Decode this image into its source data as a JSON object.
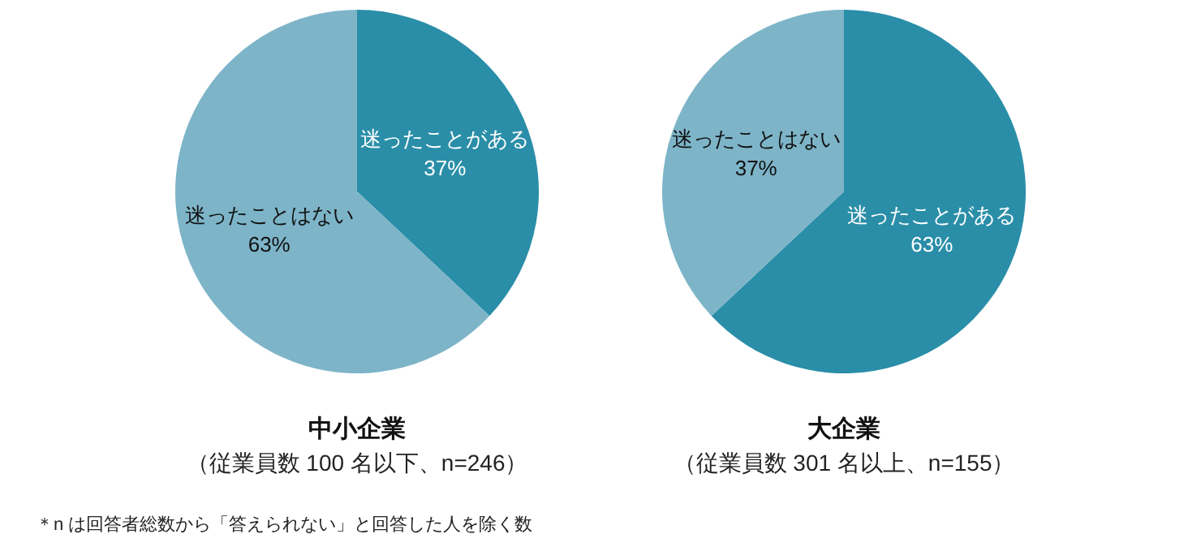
{
  "chart_data": [
    {
      "type": "pie",
      "title": "中小企業",
      "subtitle": "（従業員数 100 名以下、n=246）",
      "categories": [
        "迷ったことがある",
        "迷ったことはない"
      ],
      "values": [
        37,
        63
      ],
      "value_labels": [
        "37%",
        "63%"
      ],
      "colors": [
        "#2a8ea8",
        "#7db4c8"
      ],
      "legend": false,
      "annotations": [
        "＊n は回答者総数から「答えられない」と回答した人を除く数"
      ]
    },
    {
      "type": "pie",
      "title": "大企業",
      "subtitle": "（従業員数 301 名以上、n=155）",
      "categories": [
        "迷ったことがある",
        "迷ったことはない"
      ],
      "values": [
        63,
        37
      ],
      "value_labels": [
        "63%",
        "37%"
      ],
      "colors": [
        "#2a8ea8",
        "#7db4c8"
      ],
      "legend": false
    }
  ]
}
